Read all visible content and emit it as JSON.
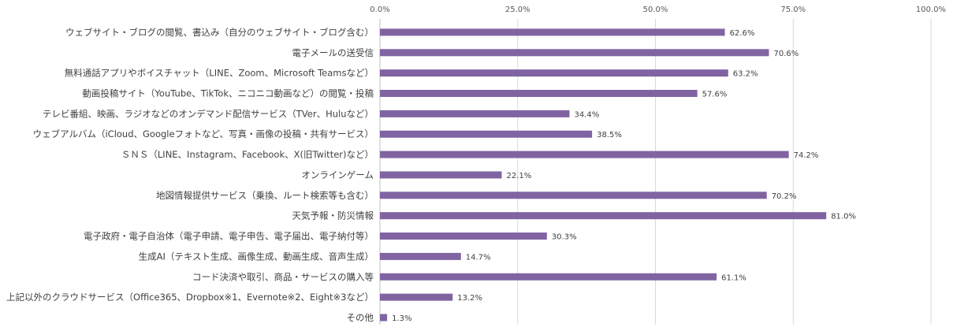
{
  "chart_data": {
    "type": "bar",
    "orientation": "horizontal",
    "title": "",
    "xlabel": "",
    "ylabel": "",
    "xlim": [
      0,
      100
    ],
    "x_tick_labels": [
      "0.0%",
      "25.0%",
      "50.0%",
      "75.0%",
      "100.0%"
    ],
    "x_ticks": [
      0,
      25,
      50,
      75,
      100
    ],
    "x_axis_position": "top",
    "grid": true,
    "bar_color": "#8064A2",
    "categories": [
      "ウェブサイト・ブログの閲覧、書込み（自分のウェブサイト・ブログ含む）",
      "電子メールの送受信",
      "無料通話アプリやボイスチャット（LINE、Zoom、Microsoft Teamsなど）",
      "動画投稿サイト（YouTube、TikTok、ニコニコ動画など）の閲覧・投稿",
      "テレビ番組、映画、ラジオなどのオンデマンド配信サービス（TVer、Huluなど）",
      "ウェブアルバム（iCloud、Googleフォトなど、写真・画像の投稿・共有サービス）",
      "ＳＮＳ（LINE、Instagram、Facebook、X(旧Twitter)など）",
      "オンラインゲーム",
      "地図情報提供サービス（乗換、ルート検索等も含む）",
      "天気予報・防災情報",
      "電子政府・電子自治体（電子申請、電子申告、電子届出、電子納付等）",
      "生成AI（テキスト生成、画像生成、動画生成、音声生成）",
      "コード決済や取引、商品・サービスの購入等",
      "上記以外のクラウドサービス（Office365、Dropbox※1、Evernote※2、Eight※3など）",
      "その他"
    ],
    "values": [
      62.6,
      70.6,
      63.2,
      57.6,
      34.4,
      38.5,
      74.2,
      22.1,
      70.2,
      81.0,
      30.3,
      14.7,
      61.1,
      13.2,
      1.3
    ],
    "value_labels": [
      "62.6%",
      "70.6%",
      "63.2%",
      "57.6%",
      "34.4%",
      "38.5%",
      "74.2%",
      "22.1%",
      "70.2%",
      "81.0%",
      "30.3%",
      "14.7%",
      "61.1%",
      "13.2%",
      "1.3%"
    ]
  }
}
